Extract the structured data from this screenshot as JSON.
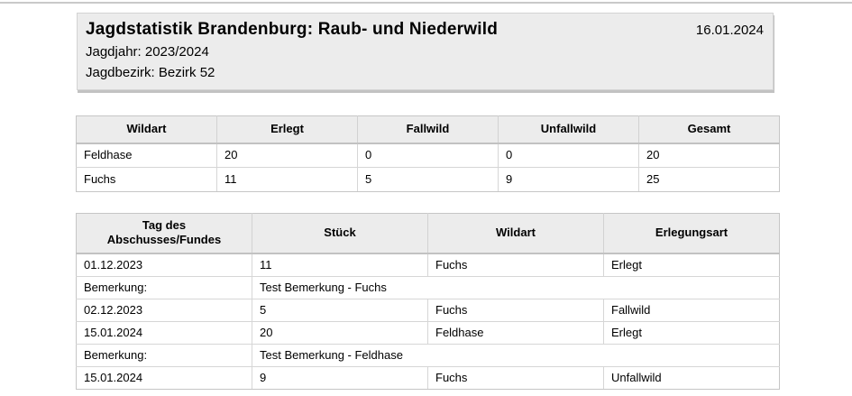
{
  "header": {
    "title": "Jagdstatistik Brandenburg: Raub- und Niederwild",
    "date": "16.01.2024",
    "jagdjahr": "Jagdjahr: 2023/2024",
    "jagdbezirk": "Jagdbezirk: Bezirk 52"
  },
  "summary_table": {
    "columns": [
      "Wildart",
      "Erlegt",
      "Fallwild",
      "Unfallwild",
      "Gesamt"
    ],
    "rows": [
      [
        "Feldhase",
        "20",
        "0",
        "0",
        "20"
      ],
      [
        "Fuchs",
        "11",
        "5",
        "9",
        "25"
      ]
    ]
  },
  "detail_table": {
    "columns": [
      "Tag des\nAbschusses/Fundes",
      "Stück",
      "Wildart",
      "Erlegungsart"
    ],
    "rows": [
      {
        "type": "entry",
        "cells": [
          "01.12.2023",
          "11",
          "Fuchs",
          "Erlegt"
        ]
      },
      {
        "type": "remark",
        "label": "Bemerkung:",
        "text": "Test Bemerkung - Fuchs"
      },
      {
        "type": "entry",
        "cells": [
          "02.12.2023",
          "5",
          "Fuchs",
          "Fallwild"
        ]
      },
      {
        "type": "entry",
        "cells": [
          "15.01.2024",
          "20",
          "Feldhase",
          "Erlegt"
        ]
      },
      {
        "type": "remark",
        "label": "Bemerkung:",
        "text": "Test Bemerkung - Feldhase"
      },
      {
        "type": "entry",
        "cells": [
          "15.01.2024",
          "9",
          "Fuchs",
          "Unfallwild"
        ]
      }
    ]
  },
  "colors": {
    "panel_background": "#ececec",
    "panel_border": "#d3d3d3",
    "panel_shadow": "#c2c2c2",
    "table_header_background": "#ececec",
    "table_border": "#d6d6d6",
    "table_outer_border": "#c6c6c6",
    "text": "#000000",
    "top_rule": "#c9c9c9"
  }
}
